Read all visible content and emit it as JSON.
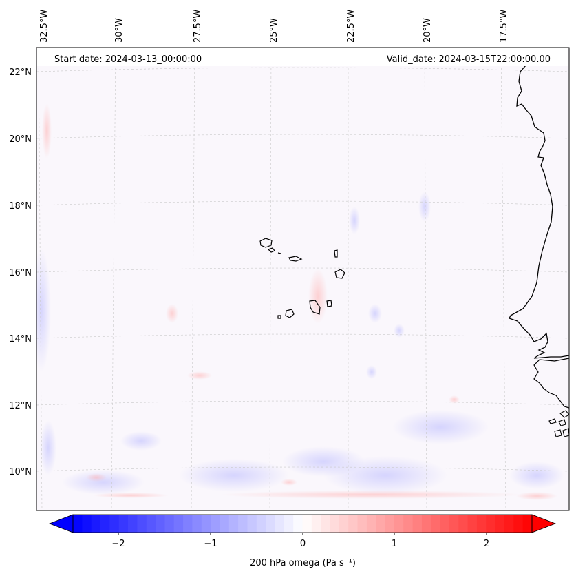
{
  "map": {
    "start_date": "Start date: 2024-03-13_00:00:00",
    "valid_date": "Valid_date: 2024-03-15T22:00:00.00",
    "lon_labels": [
      "32.5°W",
      "30°W",
      "27.5°W",
      "25°W",
      "22.5°W",
      "20°W",
      "17.5°W"
    ],
    "lat_labels": [
      "22°N",
      "20°N",
      "18°N",
      "16°N",
      "14°N",
      "12°N",
      "10°N"
    ]
  },
  "colorbar": {
    "label": "200 hPa omega (Pa s⁻¹)",
    "tick_labels": [
      "−2",
      "−1",
      "0",
      "1",
      "2"
    ],
    "tick_values": [
      -2,
      -1,
      0,
      1,
      2
    ],
    "range": [
      -2.5,
      2.5
    ],
    "colors": {
      "min": "#0000ff",
      "mid": "#ffffff",
      "max": "#ff0000"
    }
  }
}
